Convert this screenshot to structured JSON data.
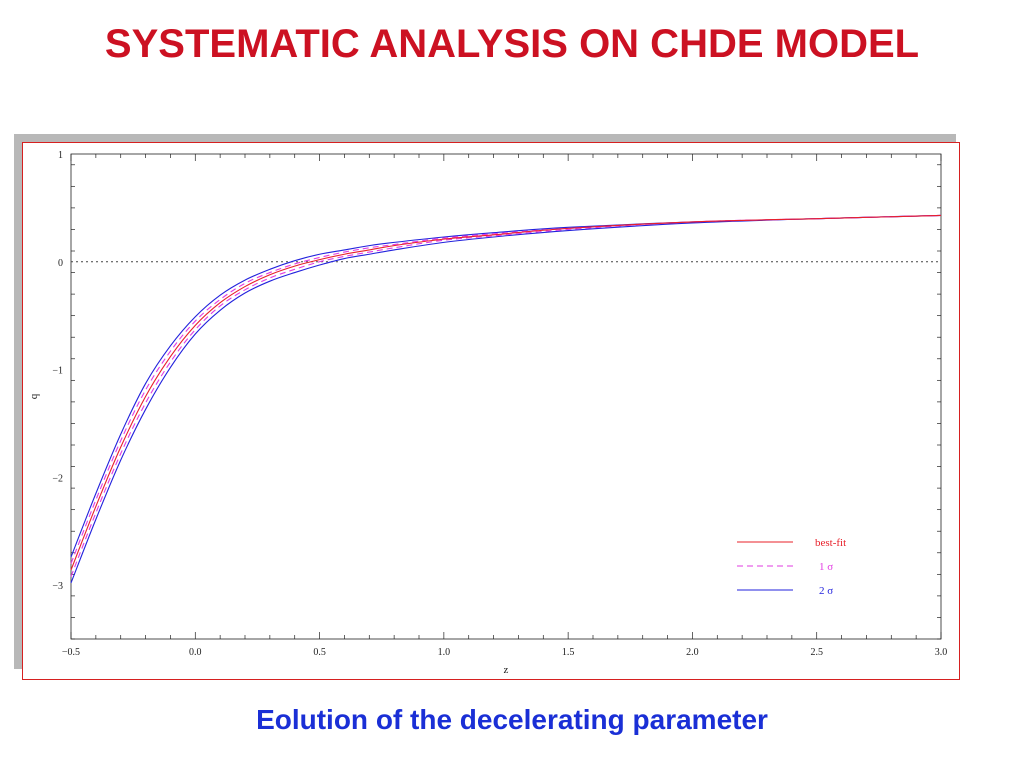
{
  "slide": {
    "title": "SYSTEMATIC ANALYSIS ON CHDE MODEL",
    "caption": "Eolution of the decelerating parameter"
  },
  "colors": {
    "title": "#cc1122",
    "caption": "#1a2fd6",
    "frame": "#d62020",
    "best_fit": "#e8202a",
    "one_sigma": "#e23be2",
    "two_sigma": "#2222dd"
  },
  "chart_data": {
    "type": "line",
    "title": "",
    "xlabel": "z",
    "ylabel": "q",
    "xlim": [
      -0.5,
      3.0
    ],
    "ylim": [
      -3.5,
      1.0
    ],
    "xticks": [
      -0.5,
      0.0,
      0.5,
      1.0,
      1.5,
      2.0,
      2.5,
      3.0
    ],
    "xtick_labels": [
      "−0.5",
      "0.0",
      "0.5",
      "1.0",
      "1.5",
      "2.0",
      "2.5",
      "3.0"
    ],
    "yticks": [
      -3,
      -2,
      -1,
      0,
      1
    ],
    "ytick_labels": [
      "−3",
      "−2",
      "−1",
      "0",
      "1"
    ],
    "reference_line": {
      "y": 0,
      "style": "dotted"
    },
    "legend": {
      "position": "bottom-right",
      "entries": [
        {
          "label": "best-fit",
          "style": "solid",
          "color": "#e8202a"
        },
        {
          "label": "1 σ",
          "style": "dashed",
          "color": "#e23be2"
        },
        {
          "label": "2 σ",
          "style": "solid",
          "color": "#2222dd"
        }
      ]
    },
    "x": [
      -0.5,
      -0.4,
      -0.3,
      -0.2,
      -0.1,
      0.0,
      0.1,
      0.2,
      0.3,
      0.4,
      0.5,
      0.6,
      0.7,
      0.8,
      1.0,
      1.2,
      1.5,
      2.0,
      2.5,
      3.0
    ],
    "series": [
      {
        "name": "best-fit",
        "style": "solid",
        "color": "#e8202a",
        "values": [
          -2.86,
          -2.27,
          -1.72,
          -1.25,
          -0.88,
          -0.59,
          -0.38,
          -0.23,
          -0.12,
          -0.04,
          0.02,
          0.07,
          0.11,
          0.15,
          0.21,
          0.25,
          0.31,
          0.37,
          0.4,
          0.43
        ]
      },
      {
        "name": "1 σ",
        "style": "dashed",
        "color": "#e23be2",
        "values": [
          -2.8,
          -2.21,
          -1.66,
          -1.19,
          -0.83,
          -0.55,
          -0.35,
          -0.2,
          -0.1,
          -0.02,
          0.04,
          0.09,
          0.13,
          0.16,
          0.22,
          0.26,
          0.31,
          0.37,
          0.4,
          0.43
        ]
      },
      {
        "name": "1 σ",
        "style": "dashed",
        "color": "#e23be2",
        "values": [
          -2.92,
          -2.33,
          -1.78,
          -1.31,
          -0.93,
          -0.63,
          -0.41,
          -0.26,
          -0.15,
          -0.07,
          0.0,
          0.05,
          0.09,
          0.13,
          0.2,
          0.24,
          0.3,
          0.37,
          0.4,
          0.43
        ]
      },
      {
        "name": "2 σ",
        "style": "solid",
        "color": "#2222dd",
        "values": [
          -2.74,
          -2.15,
          -1.6,
          -1.13,
          -0.78,
          -0.51,
          -0.31,
          -0.17,
          -0.07,
          0.01,
          0.07,
          0.11,
          0.15,
          0.18,
          0.23,
          0.27,
          0.32,
          0.37,
          0.4,
          0.43
        ]
      },
      {
        "name": "2 σ",
        "style": "solid",
        "color": "#2222dd",
        "values": [
          -2.98,
          -2.39,
          -1.84,
          -1.37,
          -0.98,
          -0.67,
          -0.45,
          -0.29,
          -0.18,
          -0.1,
          -0.03,
          0.03,
          0.07,
          0.11,
          0.18,
          0.23,
          0.29,
          0.36,
          0.4,
          0.43
        ]
      }
    ]
  }
}
